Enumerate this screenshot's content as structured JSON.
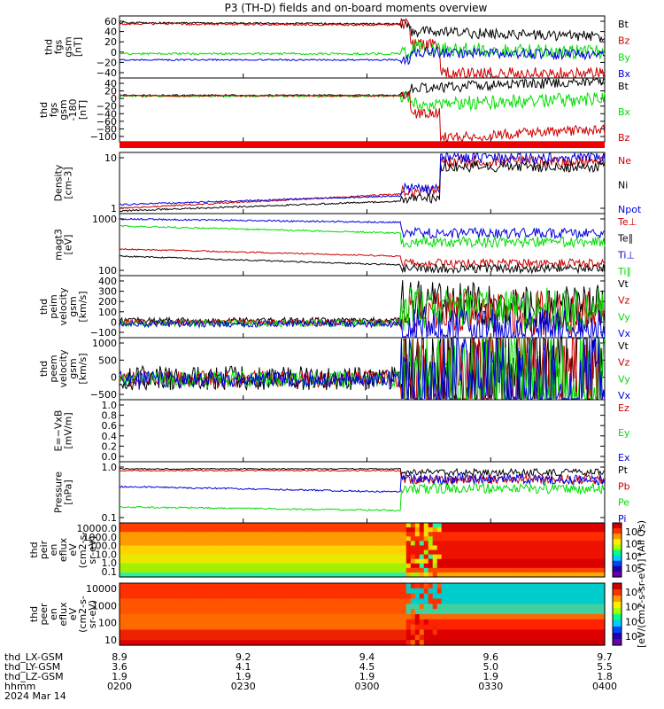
{
  "title": "P3 (TH-D) fields and on-board moments overview",
  "colors": {
    "black": "#000000",
    "red": "#cc0000",
    "green": "#00dd00",
    "blue": "#0000dd",
    "band": "#ee0000"
  },
  "chart_data": [
    {
      "type": "line",
      "ylabel": [
        "thd",
        "fgs",
        "gsm",
        "[nT]"
      ],
      "yticks": [
        "60",
        "40",
        "20",
        "0",
        "−20",
        "−40"
      ],
      "ylim": [
        -45,
        75
      ],
      "legend": [
        {
          "name": "Bt",
          "color": "black"
        },
        {
          "name": "Bz",
          "color": "red"
        },
        {
          "name": "By",
          "color": "green"
        },
        {
          "name": "Bx",
          "color": "blue"
        }
      ]
    },
    {
      "type": "line",
      "ylabel": [
        "thd",
        "fgs",
        "gsm",
        "-180",
        "[nT]"
      ],
      "yticks": [
        "40",
        "20",
        "0",
        "−20",
        "−40",
        "−60",
        "−80",
        "−100"
      ],
      "ylim": [
        -110,
        45
      ],
      "legend": [
        {
          "name": "Bt",
          "color": "black"
        },
        {
          "name": "Bx",
          "color": "green"
        },
        {
          "name": "Bz",
          "color": "red"
        }
      ],
      "band_label": ""
    },
    {
      "type": "line",
      "ylabel": [
        "Density",
        "[cm-3]"
      ],
      "yticks": [
        "10",
        "1"
      ],
      "log": true,
      "legend": [
        {
          "name": "Ne",
          "color": "red"
        },
        {
          "name": "Ni",
          "color": "black"
        },
        {
          "name": "Npot",
          "color": "blue"
        }
      ]
    },
    {
      "type": "line",
      "ylabel": [
        "magt3",
        "[eV]"
      ],
      "yticks": [
        "1000",
        "100"
      ],
      "log": true,
      "legend": [
        {
          "name": "Te⊥",
          "color": "red"
        },
        {
          "name": "Te∥",
          "color": "black"
        },
        {
          "name": "Ti⊥",
          "color": "blue"
        },
        {
          "name": "Ti∥",
          "color": "green"
        }
      ]
    },
    {
      "type": "line",
      "ylabel": [
        "thd",
        "peim",
        "velocity",
        "gsm",
        "[km/s]"
      ],
      "yticks": [
        "400",
        "300",
        "200",
        "100",
        "0",
        "−100"
      ],
      "ylim": [
        -120,
        400
      ],
      "legend": [
        {
          "name": "Vt",
          "color": "black"
        },
        {
          "name": "Vz",
          "color": "red"
        },
        {
          "name": "Vy",
          "color": "green"
        },
        {
          "name": "Vx",
          "color": "blue"
        }
      ]
    },
    {
      "type": "line",
      "ylabel": [
        "thd",
        "peem",
        "velocity",
        "gsm",
        "[km/s]"
      ],
      "yticks": [
        "1000",
        "500",
        "0",
        "−500"
      ],
      "ylim": [
        -650,
        1300
      ],
      "legend": [
        {
          "name": "Vt",
          "color": "black"
        },
        {
          "name": "Vz",
          "color": "red"
        },
        {
          "name": "Vy",
          "color": "green"
        },
        {
          "name": "Vx",
          "color": "blue"
        }
      ]
    },
    {
      "type": "line",
      "ylabel": [
        "E=−VxB",
        "[mV/m]"
      ],
      "yticks": [
        "1.0",
        "0.8",
        "0.6",
        "0.4",
        "0.2",
        "0.0"
      ],
      "ylim": [
        -0.05,
        1.0
      ],
      "legend": [
        {
          "name": "Ez",
          "color": "red"
        },
        {
          "name": "Ey",
          "color": "green"
        },
        {
          "name": "Ex",
          "color": "blue"
        }
      ]
    },
    {
      "type": "line",
      "ylabel": [
        "Pressure",
        "[nPa]"
      ],
      "yticks": [
        "1.0",
        "0.1"
      ],
      "log": true,
      "legend": [
        {
          "name": "Pt",
          "color": "black"
        },
        {
          "name": "Pb",
          "color": "red"
        },
        {
          "name": "Pe",
          "color": "green"
        },
        {
          "name": "Pi",
          "color": "blue"
        }
      ]
    },
    {
      "type": "heatmap",
      "ylabel": [
        "thd",
        "peir",
        "en",
        "eflux",
        "eV",
        "(cm2-s-",
        "sr-eV)"
      ],
      "yticks": [
        "10000.0",
        "1000.0",
        "100.0",
        "10.0",
        "1.0",
        "0.1"
      ]
    },
    {
      "type": "heatmap",
      "ylabel": [
        "thd",
        "peer",
        "en",
        "eflux",
        "eV",
        "(cm2-s-",
        "sr-eV)"
      ],
      "yticks": [
        "10000",
        "1000",
        "100",
        "10"
      ]
    }
  ],
  "colorbar": {
    "ticks": [
      "10⁸",
      "10⁶",
      "10⁴",
      "10²",
      "10⁸",
      "10⁶",
      "10⁴",
      "10²"
    ],
    "label": "[eV/(cm2-s-sr-eV)] (All Qs)"
  },
  "footer": {
    "rows": [
      {
        "label": "thd_LX-GSM",
        "values": [
          "8.9",
          "9.2",
          "9.4",
          "9.6",
          "9.7"
        ]
      },
      {
        "label": "thd_LY-GSM",
        "values": [
          "3.6",
          "4.1",
          "4.5",
          "5.0",
          "5.5"
        ]
      },
      {
        "label": "thd_LZ-GSM",
        "values": [
          "1.9",
          "1.9",
          "1.9",
          "1.9",
          "1.8"
        ]
      },
      {
        "label": "hhmm",
        "values": [
          "0200",
          "0230",
          "0300",
          "0330",
          "0400"
        ]
      }
    ],
    "date": "2024 Mar 14"
  }
}
